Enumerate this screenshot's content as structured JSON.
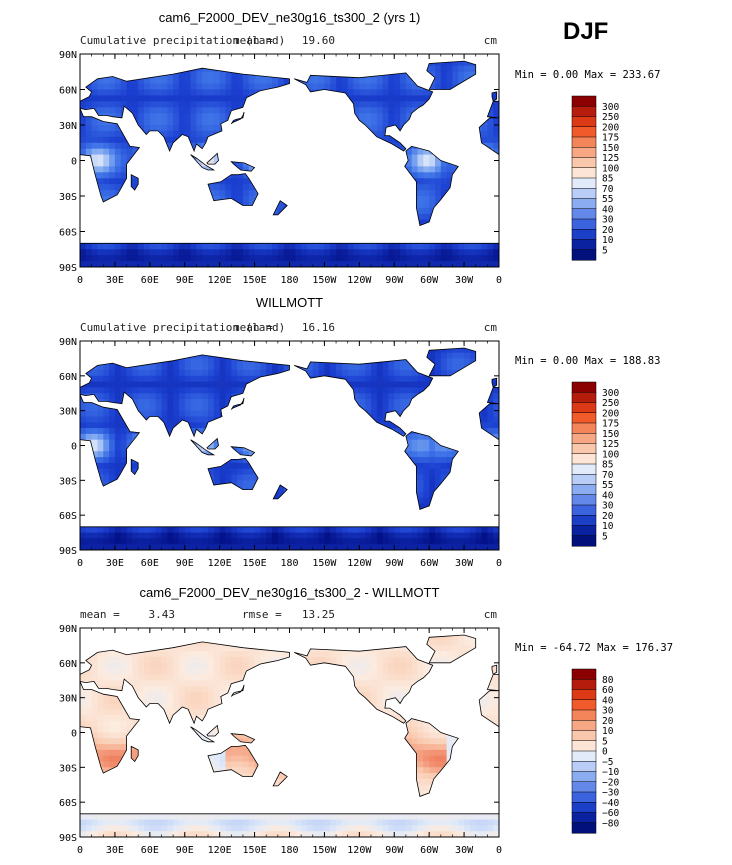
{
  "season": "DJF",
  "chart_data": [
    {
      "type": "heatmap",
      "title": "cam6_F2000_DEV_ne30g16_ts300_2 (yrs 1)",
      "subtitle": "Cumulative precipitation (land)",
      "stat_label": "mean =",
      "stat_value": "19.60",
      "units": "cm",
      "min_max": "Min =    0.00 Max = 233.67",
      "y_ticks": [
        "90N",
        "60N",
        "30N",
        "0",
        "30S",
        "60S",
        "90S"
      ],
      "x_ticks": [
        "0",
        "30E",
        "60E",
        "90E",
        "120E",
        "150E",
        "180",
        "150W",
        "120W",
        "90W",
        "60W",
        "30W",
        "0"
      ],
      "colorbar_labels": [
        "300",
        "250",
        "200",
        "175",
        "150",
        "125",
        "100",
        "85",
        "70",
        "55",
        "40",
        "30",
        "20",
        "10",
        "5"
      ],
      "colorbar_colors": [
        "#8b0000",
        "#b51c0c",
        "#dc3a16",
        "#f15a2a",
        "#f4845a",
        "#f7a784",
        "#f9c7ab",
        "#fce5d6",
        "#e2ebf9",
        "#b9cdf6",
        "#8bacf1",
        "#6388ea",
        "#3c63de",
        "#1c3fc8",
        "#0a22a0",
        "#01107a"
      ],
      "map_style": "abs"
    },
    {
      "type": "heatmap",
      "title": "WILLMOTT",
      "subtitle": "Cumulative precipitation (land)",
      "stat_label": "mean =",
      "stat_value": "16.16",
      "units": "cm",
      "min_max": "Min =    0.00 Max = 188.83",
      "y_ticks": [
        "90N",
        "60N",
        "30N",
        "0",
        "30S",
        "60S",
        "90S"
      ],
      "x_ticks": [
        "0",
        "30E",
        "60E",
        "90E",
        "120E",
        "150E",
        "180",
        "150W",
        "120W",
        "90W",
        "60W",
        "30W",
        "0"
      ],
      "colorbar_labels": [
        "300",
        "250",
        "200",
        "175",
        "150",
        "125",
        "100",
        "85",
        "70",
        "55",
        "40",
        "30",
        "20",
        "10",
        "5"
      ],
      "colorbar_colors": [
        "#8b0000",
        "#b51c0c",
        "#dc3a16",
        "#f15a2a",
        "#f4845a",
        "#f7a784",
        "#f9c7ab",
        "#fce5d6",
        "#e2ebf9",
        "#b9cdf6",
        "#8bacf1",
        "#6388ea",
        "#3c63de",
        "#1c3fc8",
        "#0a22a0",
        "#01107a"
      ],
      "map_style": "abs"
    },
    {
      "type": "heatmap",
      "title": "cam6_F2000_DEV_ne30g16_ts300_2 - WILLMOTT",
      "subtitle": "",
      "stat_label": "mean =",
      "stat_value": "3.43",
      "stat2_label": "rmse =",
      "stat2_value": "13.25",
      "units": "cm",
      "min_max": "Min = -64.72 Max = 176.37",
      "y_ticks": [
        "90N",
        "60N",
        "30N",
        "0",
        "30S",
        "60S",
        "90S"
      ],
      "x_ticks": [
        "0",
        "30E",
        "60E",
        "90E",
        "120E",
        "150E",
        "180",
        "150W",
        "120W",
        "90W",
        "60W",
        "30W",
        "0"
      ],
      "colorbar_labels": [
        "80",
        "60",
        "40",
        "30",
        "20",
        "10",
        "5",
        "0",
        "−5",
        "−10",
        "−20",
        "−30",
        "−40",
        "−60",
        "−80"
      ],
      "colorbar_colors": [
        "#8b0000",
        "#b51c0c",
        "#dc3a16",
        "#f15a2a",
        "#f4845a",
        "#f7a784",
        "#f9c7ab",
        "#fce5d6",
        "#e2ebf9",
        "#b9cdf6",
        "#8bacf1",
        "#6388ea",
        "#3c63de",
        "#1c3fc8",
        "#0a22a0",
        "#01107a"
      ],
      "map_style": "diff"
    }
  ]
}
